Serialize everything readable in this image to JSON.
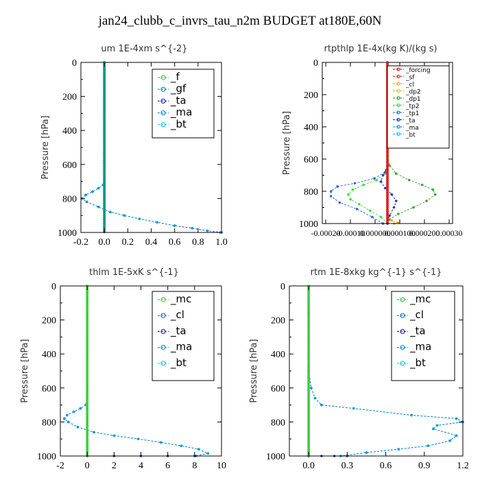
{
  "figure": {
    "title": "jan24_clubb_c_invrs_tau_n2m  BUDGET at180E,60N"
  },
  "colors": {
    "f": "#44cc44",
    "gf": "#119988",
    "ta": "#2233cc",
    "ma": "#1199dd",
    "bt": "#11ccee",
    "mc": "#44cc44",
    "cl": "#1177dd",
    "forcing": "#dd2222",
    "sf": "#ee3333",
    "cl_orange": "#ffaa22",
    "dp2": "#ddcc33",
    "dp1": "#33aa33",
    "tp2": "#44dd44",
    "tp1": "#3366ee"
  },
  "chart_data": [
    {
      "type": "line",
      "title": "um   1E-4xm s^{-2}",
      "ylabel": "Pressure [hPa]",
      "xlim": [
        -0.2,
        1.0
      ],
      "ylim": [
        1000,
        0
      ],
      "xticks": [
        "-0.2",
        "0.0",
        "0.2",
        "0.4",
        "0.6",
        "0.8",
        "1.0"
      ],
      "yticks": [
        "0",
        "200",
        "400",
        "600",
        "800",
        "1000"
      ],
      "legend": {
        "position": "top-right",
        "entries": [
          "_f",
          "_gf",
          "_ta",
          "_ma",
          "_bt"
        ]
      },
      "series": [
        {
          "name": "_ta",
          "color_key": "ta",
          "x": [
            0,
            -0.01,
            -0.05,
            -0.1,
            -0.16,
            -0.19,
            -0.15,
            -0.05,
            0.05,
            0.17,
            0.3,
            0.45,
            0.6,
            0.75,
            0.88,
            1.0
          ],
          "y": [
            700,
            720,
            740,
            760,
            780,
            800,
            820,
            850,
            880,
            900,
            920,
            940,
            960,
            975,
            990,
            1000
          ]
        },
        {
          "name": "_ma",
          "color_key": "ma",
          "x": [
            0,
            -0.01,
            -0.05,
            -0.1,
            -0.16,
            -0.19,
            -0.15,
            -0.05,
            0.05,
            0.17,
            0.3,
            0.45,
            0.6,
            0.75,
            0.88,
            0.99
          ],
          "y": [
            700,
            720,
            740,
            760,
            780,
            800,
            820,
            850,
            880,
            900,
            920,
            940,
            960,
            975,
            990,
            1000
          ]
        },
        {
          "name": "_f",
          "color_key": "f",
          "x": [
            0,
            0
          ],
          "y": [
            0,
            1000
          ],
          "vertical": true
        },
        {
          "name": "_gf",
          "color_key": "gf",
          "x": [
            0.0,
            0.0
          ],
          "y": [
            0,
            1000
          ],
          "vertical": true
        }
      ]
    },
    {
      "type": "line",
      "title": "rtpthlp   1E-4x(kg K)/(kg s)",
      "ylabel": "Pressure [hPa]",
      "xlim": [
        -0.0003,
        0.0003
      ],
      "ylim": [
        1000,
        0
      ],
      "xticks": [
        "-0.00020",
        "-0.00010",
        "0.000000",
        "0.000100",
        "0.000200",
        "0.00030"
      ],
      "yticks": [
        "0",
        "200",
        "400",
        "600",
        "800",
        "1000"
      ],
      "legend": {
        "position": "top-right",
        "entries": [
          "_forcing",
          "_sf",
          "_cl",
          "_dp2",
          "_dp1",
          "_tp2",
          "_tp1",
          "_ta",
          "_ma",
          "_bt"
        ]
      },
      "series": [
        {
          "name": "_dp1",
          "color_key": "dp1",
          "x": [
            0,
            1e-05,
            4e-05,
            0.0001,
            0.00016,
            0.00021,
            0.00022,
            0.00018,
            0.00012,
            5e-05,
            1e-05,
            0
          ],
          "y": [
            580,
            640,
            690,
            730,
            760,
            790,
            820,
            860,
            900,
            940,
            975,
            1000
          ]
        },
        {
          "name": "_tp2",
          "color_key": "tp2",
          "x": [
            0,
            -1e-05,
            -5e-05,
            -0.00011,
            -0.00016,
            -0.00018,
            -0.00017,
            -0.00013,
            -8e-05,
            -3e-05,
            0
          ],
          "y": [
            640,
            690,
            730,
            760,
            790,
            820,
            850,
            880,
            920,
            960,
            1000
          ]
        },
        {
          "name": "_tp1",
          "color_key": "tp1",
          "x": [
            0,
            -1e-05,
            -6e-05,
            -0.00015,
            -0.00023,
            -0.00026,
            -0.00026,
            -0.00022,
            -0.00014,
            -7e-05,
            -2e-05
          ],
          "y": [
            620,
            680,
            720,
            750,
            770,
            800,
            830,
            870,
            910,
            960,
            1000
          ]
        },
        {
          "name": "_ta",
          "color_key": "ta",
          "x": [
            0,
            -2e-05,
            -3e-05,
            -1e-05,
            2e-05,
            4e-05,
            3e-05,
            1e-05,
            0
          ],
          "y": [
            640,
            700,
            740,
            780,
            820,
            860,
            900,
            950,
            1000
          ]
        },
        {
          "name": "_cl",
          "color_key": "cl_orange",
          "x": [
            0,
            2e-05,
            5e-05,
            3e-05
          ],
          "y": [
            960,
            980,
            995,
            1000
          ]
        },
        {
          "name": "_forcing",
          "color_key": "forcing",
          "x": [
            0,
            0
          ],
          "y": [
            0,
            1000
          ],
          "vertical": true
        }
      ]
    },
    {
      "type": "line",
      "title": "thlm   1E-5xK s^{-1}",
      "ylabel": "Pressure [hPa]",
      "xlim": [
        -2,
        10
      ],
      "ylim": [
        1000,
        0
      ],
      "xticks": [
        "-2",
        "0",
        "2",
        "4",
        "6",
        "8",
        "10"
      ],
      "yticks": [
        "0",
        "200",
        "400",
        "600",
        "800",
        "1000"
      ],
      "legend": {
        "position": "top-right",
        "entries": [
          "_mc",
          "_cl",
          "_ta",
          "_ma",
          "_bt"
        ]
      },
      "series": [
        {
          "name": "_cl",
          "color_key": "cl",
          "x": [
            0,
            -0.1,
            -0.5,
            -1.0,
            -1.5,
            -1.7,
            -1.4,
            -0.7,
            0.5,
            2.0,
            3.8,
            5.5,
            7.0,
            8.3,
            9.0,
            8.1
          ],
          "y": [
            660,
            700,
            720,
            740,
            760,
            780,
            800,
            830,
            860,
            880,
            900,
            920,
            940,
            960,
            985,
            1000
          ]
        },
        {
          "name": "_ma",
          "color_key": "ma",
          "x": [
            0,
            -0.1,
            -0.5,
            -1.0,
            -1.5,
            -1.7,
            -1.4,
            -0.7,
            0.5,
            2.0,
            3.8,
            5.5,
            7.0,
            8.3,
            9.0,
            8.1
          ],
          "y": [
            660,
            700,
            720,
            740,
            760,
            780,
            800,
            830,
            860,
            880,
            900,
            920,
            940,
            960,
            985,
            1000
          ]
        },
        {
          "name": "_ta",
          "color_key": "ta",
          "x": [
            0,
            2,
            4,
            6,
            8.0
          ],
          "y": [
            1000,
            1000,
            1000,
            1000,
            1000
          ]
        },
        {
          "name": "_mc",
          "color_key": "mc",
          "x": [
            0,
            0
          ],
          "y": [
            0,
            1000
          ],
          "vertical": true
        }
      ]
    },
    {
      "type": "line",
      "title": "rtm   1E-8xkg kg^{-1} s^{-1}",
      "ylabel": "Pressure [hPa]",
      "xlim": [
        -0.15,
        1.2
      ],
      "ylim": [
        1000,
        0
      ],
      "xticks": [
        "0.0",
        "0.3",
        "0.6",
        "0.9",
        "1.2"
      ],
      "yticks": [
        "0",
        "200",
        "400",
        "600",
        "800",
        "1000"
      ],
      "legend": {
        "position": "top-right",
        "entries": [
          "_mc",
          "_cl",
          "_ta",
          "_ma",
          "_bt"
        ]
      },
      "series": [
        {
          "name": "_cl",
          "color_key": "cl",
          "x": [
            0,
            0.02,
            0.05,
            0.1,
            0.35,
            0.8,
            1.15,
            1.2,
            1.0,
            0.97,
            1.15,
            1.1,
            0.93,
            0.7,
            0.45,
            0.25
          ],
          "y": [
            500,
            600,
            660,
            700,
            720,
            760,
            780,
            800,
            820,
            840,
            880,
            910,
            940,
            960,
            980,
            1000
          ]
        },
        {
          "name": "_ma",
          "color_key": "ma",
          "x": [
            0,
            0.02,
            0.05,
            0.1,
            0.35,
            0.8,
            1.15,
            1.2,
            1.0,
            0.97,
            1.15,
            1.1,
            0.93,
            0.7,
            0.45,
            0.25
          ],
          "y": [
            500,
            600,
            660,
            700,
            720,
            760,
            780,
            800,
            820,
            840,
            880,
            910,
            940,
            960,
            980,
            1000
          ]
        },
        {
          "name": "_ta",
          "color_key": "ta",
          "x": [
            0,
            0.1,
            0.2,
            0.3
          ],
          "y": [
            1000,
            1000,
            1000,
            1000
          ]
        },
        {
          "name": "_mc",
          "color_key": "mc",
          "x": [
            0,
            0
          ],
          "y": [
            0,
            1000
          ],
          "vertical": true
        }
      ]
    }
  ]
}
